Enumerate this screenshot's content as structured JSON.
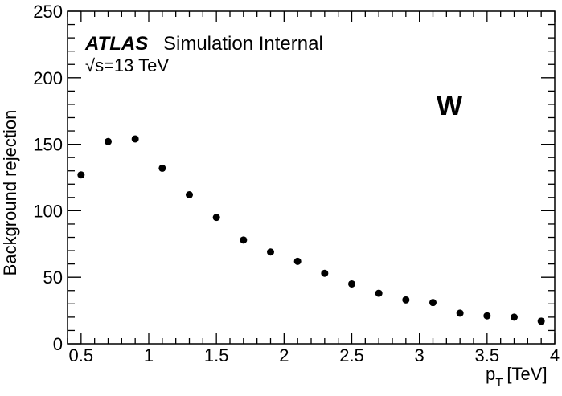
{
  "chart_data": {
    "type": "scatter",
    "xlabel": "p",
    "xlabel_subscript": "T",
    "xlabel_unit": "[TeV]",
    "ylabel": "Background rejection",
    "xlim": [
      0.4,
      4.0
    ],
    "ylim": [
      0,
      250
    ],
    "x_ticks": [
      "0.5",
      "1",
      "1.5",
      "2",
      "2.5",
      "3",
      "3.5",
      "4"
    ],
    "x_tick_values": [
      0.5,
      1,
      1.5,
      2,
      2.5,
      3,
      3.5,
      4
    ],
    "y_ticks": [
      "0",
      "50",
      "100",
      "150",
      "200",
      "250"
    ],
    "y_tick_values": [
      0,
      50,
      100,
      150,
      200,
      250
    ],
    "grid": false,
    "marker_color": "#000000",
    "series": [
      {
        "x": [
          0.5,
          0.7,
          0.9,
          1.1,
          1.3,
          1.5,
          1.7,
          1.9,
          2.1,
          2.3,
          2.5,
          2.7,
          2.9,
          3.1,
          3.3,
          3.5,
          3.7,
          3.9
        ],
        "y": [
          127,
          152,
          154,
          132,
          112,
          95,
          78,
          69,
          62,
          53,
          45,
          38,
          33,
          31,
          23,
          21,
          20,
          17
        ]
      }
    ],
    "annotations": {
      "atlas": "ATLAS",
      "internal": "Simulation Internal",
      "sqrt": "√s",
      "energy": "=13 TeV",
      "particle": "W"
    }
  }
}
